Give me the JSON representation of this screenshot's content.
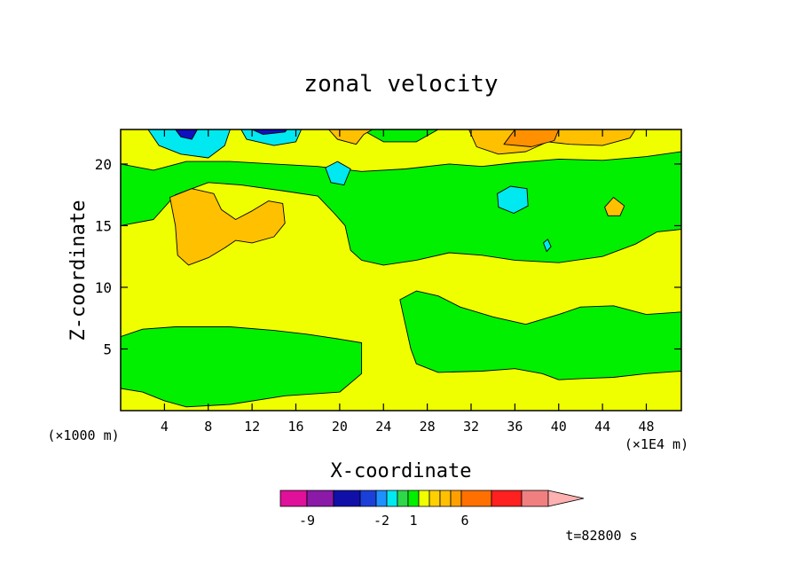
{
  "chart_data": {
    "type": "contour",
    "title": "zonal velocity",
    "xlabel": "X-coordinate",
    "ylabel": "Z-coordinate",
    "x_unit": "(×1E4 m)",
    "y_unit": "(×1000 m)",
    "xlim": [
      0,
      51.2
    ],
    "ylim": [
      0,
      22.8
    ],
    "x_ticks": [
      4,
      8,
      12,
      16,
      20,
      24,
      28,
      32,
      36,
      40,
      44,
      48
    ],
    "y_ticks": [
      5,
      10,
      15,
      20
    ],
    "time_label": "t=82800 s",
    "colorbar": {
      "colors": [
        "#e0109a",
        "#8b1aa8",
        "#1010a8",
        "#1a40d8",
        "#1e90ff",
        "#00e8f0",
        "#2ed84a",
        "#00f000",
        "#f0ff00",
        "#ffd000",
        "#ffc000",
        "#ffa000",
        "#ff7000",
        "#ff2020",
        "#f08080",
        "#ffb0b0"
      ],
      "widths": [
        30,
        30,
        30,
        18,
        12,
        12,
        12,
        12,
        12,
        12,
        12,
        12,
        34,
        34,
        30,
        40
      ],
      "tick_labels": [
        {
          "label": "-9",
          "pos": 30
        },
        {
          "label": "-2",
          "pos": 114
        },
        {
          "label": "1",
          "pos": 150
        },
        {
          "label": "6",
          "pos": 208
        }
      ]
    },
    "regions": [
      {
        "color": "#f0ff00",
        "points": [
          [
            0,
            15
          ],
          [
            3,
            15.5
          ],
          [
            5,
            17.5
          ],
          [
            8,
            18.5
          ],
          [
            11,
            18.3
          ],
          [
            15,
            17.8
          ],
          [
            18,
            17.4
          ],
          [
            19.5,
            16
          ],
          [
            20.5,
            15
          ],
          [
            21,
            13
          ],
          [
            22,
            12.2
          ],
          [
            24,
            11.8
          ],
          [
            27,
            12.2
          ],
          [
            30,
            12.8
          ],
          [
            33,
            12.6
          ],
          [
            36,
            12.2
          ],
          [
            40,
            12
          ],
          [
            44,
            12.5
          ],
          [
            47,
            13.5
          ],
          [
            49,
            14.5
          ],
          [
            51.2,
            14.7
          ],
          [
            51.2,
            8
          ],
          [
            48,
            7.8
          ],
          [
            45,
            8.5
          ],
          [
            42,
            8.4
          ],
          [
            40,
            7.8
          ],
          [
            37,
            7
          ],
          [
            34,
            7.6
          ],
          [
            31,
            8.4
          ],
          [
            29,
            9.3
          ],
          [
            27,
            9.7
          ],
          [
            25.5,
            9
          ],
          [
            26,
            7
          ],
          [
            26.5,
            5
          ],
          [
            27,
            3.8
          ],
          [
            29,
            3.1
          ],
          [
            33,
            3.2
          ],
          [
            36,
            3.4
          ],
          [
            38.5,
            3
          ],
          [
            40,
            2.5
          ],
          [
            42,
            2.6
          ],
          [
            45,
            2.7
          ],
          [
            48,
            3
          ],
          [
            51.2,
            3.2
          ],
          [
            51.2,
            0
          ],
          [
            0,
            0
          ],
          [
            0,
            1.8
          ],
          [
            2,
            1.5
          ],
          [
            4,
            0.8
          ],
          [
            6,
            0.3
          ],
          [
            10,
            0.5
          ],
          [
            15,
            1.2
          ],
          [
            20,
            1.5
          ],
          [
            22,
            3
          ],
          [
            22,
            5.5
          ],
          [
            20,
            5.8
          ],
          [
            17,
            6.2
          ],
          [
            14,
            6.5
          ],
          [
            10,
            6.8
          ],
          [
            5,
            6.8
          ],
          [
            2,
            6.6
          ],
          [
            0,
            6
          ]
        ]
      },
      {
        "color": "#f0ff00",
        "points": [
          [
            3,
            19.5
          ],
          [
            6,
            20.2
          ],
          [
            10,
            20.2
          ],
          [
            14,
            20
          ],
          [
            18,
            19.8
          ],
          [
            22,
            19.4
          ],
          [
            26,
            19.6
          ],
          [
            30,
            20
          ],
          [
            33,
            19.8
          ],
          [
            36,
            20.1
          ],
          [
            40,
            20.4
          ],
          [
            44,
            20.3
          ],
          [
            48,
            20.6
          ],
          [
            51.2,
            21
          ],
          [
            51.2,
            22.8
          ],
          [
            29,
            22.8
          ],
          [
            27,
            21.8
          ],
          [
            24,
            21.8
          ],
          [
            22,
            22.8
          ],
          [
            0,
            22.8
          ],
          [
            0,
            20
          ]
        ]
      },
      {
        "color": "#ffc000",
        "points": [
          [
            4.5,
            17.3
          ],
          [
            6.5,
            18
          ],
          [
            8.5,
            17.6
          ],
          [
            9.2,
            16.3
          ],
          [
            10.5,
            15.5
          ],
          [
            12,
            16.2
          ],
          [
            13.5,
            17
          ],
          [
            14.8,
            16.8
          ],
          [
            15,
            15.2
          ],
          [
            14,
            14.1
          ],
          [
            12,
            13.6
          ],
          [
            10.5,
            13.8
          ],
          [
            9.5,
            13.2
          ],
          [
            8,
            12.4
          ],
          [
            6.2,
            11.8
          ],
          [
            5.2,
            12.6
          ],
          [
            5,
            15
          ]
        ]
      },
      {
        "color": "#ffc000",
        "points": [
          [
            19,
            22.8
          ],
          [
            19.8,
            22
          ],
          [
            21.5,
            21.6
          ],
          [
            22.2,
            22.4
          ],
          [
            23,
            22.8
          ]
        ]
      },
      {
        "color": "#ffc000",
        "points": [
          [
            31.8,
            22.8
          ],
          [
            32.5,
            21.4
          ],
          [
            34.5,
            20.8
          ],
          [
            37,
            21
          ],
          [
            39,
            21.8
          ],
          [
            41,
            21.6
          ],
          [
            44,
            21.5
          ],
          [
            46.5,
            22.1
          ],
          [
            47,
            22.8
          ]
        ]
      },
      {
        "color": "#ff9000",
        "points": [
          [
            35,
            21.6
          ],
          [
            36,
            22.8
          ],
          [
            40,
            22.8
          ],
          [
            39.6,
            21.9
          ],
          [
            37.5,
            21.4
          ]
        ]
      },
      {
        "color": "#ffc000",
        "points": [
          [
            44.2,
            16.5
          ],
          [
            45,
            17.3
          ],
          [
            46,
            16.6
          ],
          [
            45.6,
            15.8
          ],
          [
            44.5,
            15.8
          ]
        ]
      },
      {
        "color": "#00e8f0",
        "points": [
          [
            2.5,
            22.8
          ],
          [
            3.5,
            21.5
          ],
          [
            5.5,
            20.8
          ],
          [
            8,
            20.5
          ],
          [
            9.5,
            21.5
          ],
          [
            10,
            22.8
          ]
        ]
      },
      {
        "color": "#00e8f0",
        "points": [
          [
            11,
            22.8
          ],
          [
            11.5,
            22
          ],
          [
            14,
            21.5
          ],
          [
            16,
            21.8
          ],
          [
            16.5,
            22.8
          ]
        ]
      },
      {
        "color": "#1010c0",
        "points": [
          [
            5,
            22.8
          ],
          [
            5.5,
            22.2
          ],
          [
            6.5,
            22
          ],
          [
            7,
            22.8
          ]
        ]
      },
      {
        "color": "#1010c0",
        "points": [
          [
            12,
            22.8
          ],
          [
            13,
            22.4
          ],
          [
            15,
            22.6
          ],
          [
            15.2,
            22.8
          ]
        ]
      },
      {
        "color": "#00e8f0",
        "points": [
          [
            18.7,
            19.7
          ],
          [
            19.8,
            20.2
          ],
          [
            21,
            19.6
          ],
          [
            20.4,
            18.3
          ],
          [
            19.2,
            18.5
          ]
        ]
      },
      {
        "color": "#00e8f0",
        "points": [
          [
            34.4,
            17.6
          ],
          [
            35.6,
            18.2
          ],
          [
            37.1,
            18
          ],
          [
            37.2,
            16.6
          ],
          [
            35.9,
            16
          ],
          [
            34.5,
            16.5
          ]
        ]
      },
      {
        "color": "#00e8f0",
        "points": [
          [
            38.6,
            13.6
          ],
          [
            39,
            13.9
          ],
          [
            39.3,
            13.3
          ],
          [
            38.9,
            12.9
          ]
        ]
      }
    ]
  }
}
